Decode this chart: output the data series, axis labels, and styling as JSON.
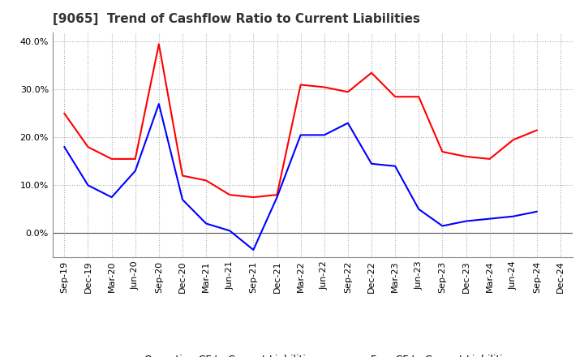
{
  "title": "[9065]  Trend of Cashflow Ratio to Current Liabilities",
  "x_labels": [
    "Sep-19",
    "Dec-19",
    "Mar-20",
    "Jun-20",
    "Sep-20",
    "Dec-20",
    "Mar-21",
    "Jun-21",
    "Sep-21",
    "Dec-21",
    "Mar-22",
    "Jun-22",
    "Sep-22",
    "Dec-22",
    "Mar-23",
    "Jun-23",
    "Sep-23",
    "Dec-23",
    "Mar-24",
    "Jun-24",
    "Sep-24",
    "Dec-24"
  ],
  "operating_cf": [
    25.0,
    18.0,
    15.5,
    15.5,
    39.5,
    12.0,
    11.0,
    8.0,
    7.5,
    8.0,
    31.0,
    30.5,
    29.5,
    33.5,
    28.5,
    28.5,
    17.0,
    16.0,
    15.5,
    19.5,
    21.5,
    null
  ],
  "free_cf": [
    18.0,
    10.0,
    7.5,
    13.0,
    27.0,
    7.0,
    2.0,
    0.5,
    -3.5,
    7.5,
    20.5,
    20.5,
    23.0,
    14.5,
    14.0,
    5.0,
    1.5,
    2.5,
    3.0,
    3.5,
    4.5,
    null
  ],
  "ylim": [
    -5,
    42
  ],
  "yticks": [
    0.0,
    10.0,
    20.0,
    30.0,
    40.0
  ],
  "operating_color": "#ff0000",
  "free_color": "#0000ff",
  "background_color": "#ffffff",
  "grid_color": "#aaaaaa",
  "title_fontsize": 11,
  "legend_fontsize": 9,
  "tick_fontsize": 8
}
